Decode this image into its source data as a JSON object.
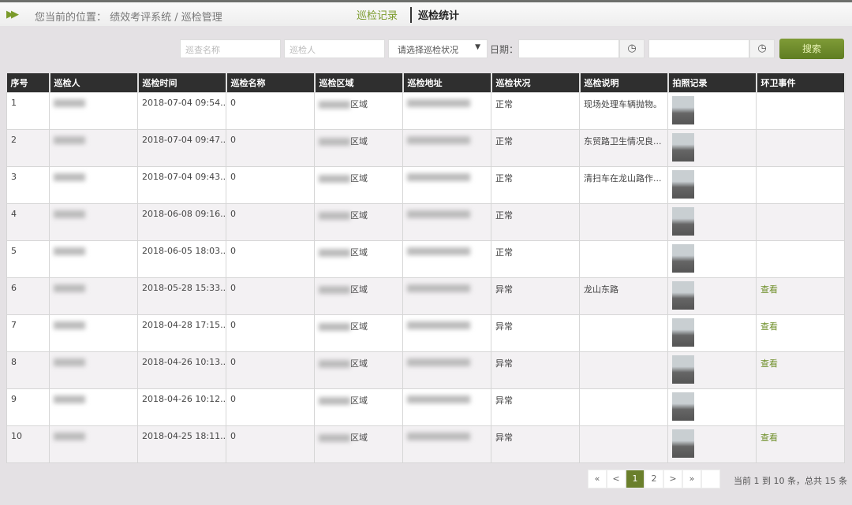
{
  "breadcrumb": {
    "icon": "double-chevron-right-icon",
    "text": "您当前的位置： 绩效考评系统 / 巡检管理"
  },
  "tabs": [
    {
      "label": "巡检记录",
      "active": false
    },
    {
      "label": "巡检统计",
      "active": true
    }
  ],
  "filters": {
    "name_placeholder": "巡查名称",
    "person_placeholder": "巡检人",
    "status_select": "请选择巡检状况",
    "date_label": "日期：",
    "search_label": "搜索"
  },
  "colors": {
    "accent": "#6a7f2c",
    "header_bg": "#2f2f2f"
  },
  "table": {
    "headers": [
      "序号",
      "巡检人",
      "巡检时间",
      "巡检名称",
      "巡检区域",
      "巡检地址",
      "巡检状况",
      "巡检说明",
      "拍照记录",
      "环卫事件"
    ],
    "rows": [
      {
        "no": "1",
        "time": "2018-07-04 09:54...",
        "name": "0",
        "area": "区域",
        "status": "正常",
        "desc": "现场处理车辆抛物。",
        "event": ""
      },
      {
        "no": "2",
        "time": "2018-07-04 09:47...",
        "name": "0",
        "area": "区域",
        "status": "正常",
        "desc": "东贸路卫生情况良...",
        "event": ""
      },
      {
        "no": "3",
        "time": "2018-07-04 09:43...",
        "name": "0",
        "area": "区域",
        "status": "正常",
        "desc": "清扫车在龙山路作...",
        "event": ""
      },
      {
        "no": "4",
        "time": "2018-06-08 09:16...",
        "name": "0",
        "area": "区域",
        "status": "正常",
        "desc": "",
        "event": ""
      },
      {
        "no": "5",
        "time": "2018-06-05 18:03...",
        "name": "0",
        "area": "区域",
        "status": "正常",
        "desc": "",
        "event": ""
      },
      {
        "no": "6",
        "time": "2018-05-28 15:33...",
        "name": "0",
        "area": "区域",
        "status": "异常",
        "desc": "龙山东路",
        "event": "查看"
      },
      {
        "no": "7",
        "time": "2018-04-28 17:15...",
        "name": "0",
        "area": "区域",
        "status": "异常",
        "desc": "",
        "event": "查看"
      },
      {
        "no": "8",
        "time": "2018-04-26 10:13...",
        "name": "0",
        "area": "区域",
        "status": "异常",
        "desc": "",
        "event": "查看"
      },
      {
        "no": "9",
        "time": "2018-04-26 10:12...",
        "name": "0",
        "area": "区域",
        "status": "异常",
        "desc": "",
        "event": ""
      },
      {
        "no": "10",
        "time": "2018-04-25 18:11...",
        "name": "0",
        "area": "区域",
        "status": "异常",
        "desc": "",
        "event": "查看"
      }
    ]
  },
  "pagination": {
    "first": "«",
    "prev": "<",
    "pages": [
      "1",
      "2"
    ],
    "current": "1",
    "next": ">",
    "last": "»",
    "info": "当前 1 到 10 条，总共 15 条"
  }
}
